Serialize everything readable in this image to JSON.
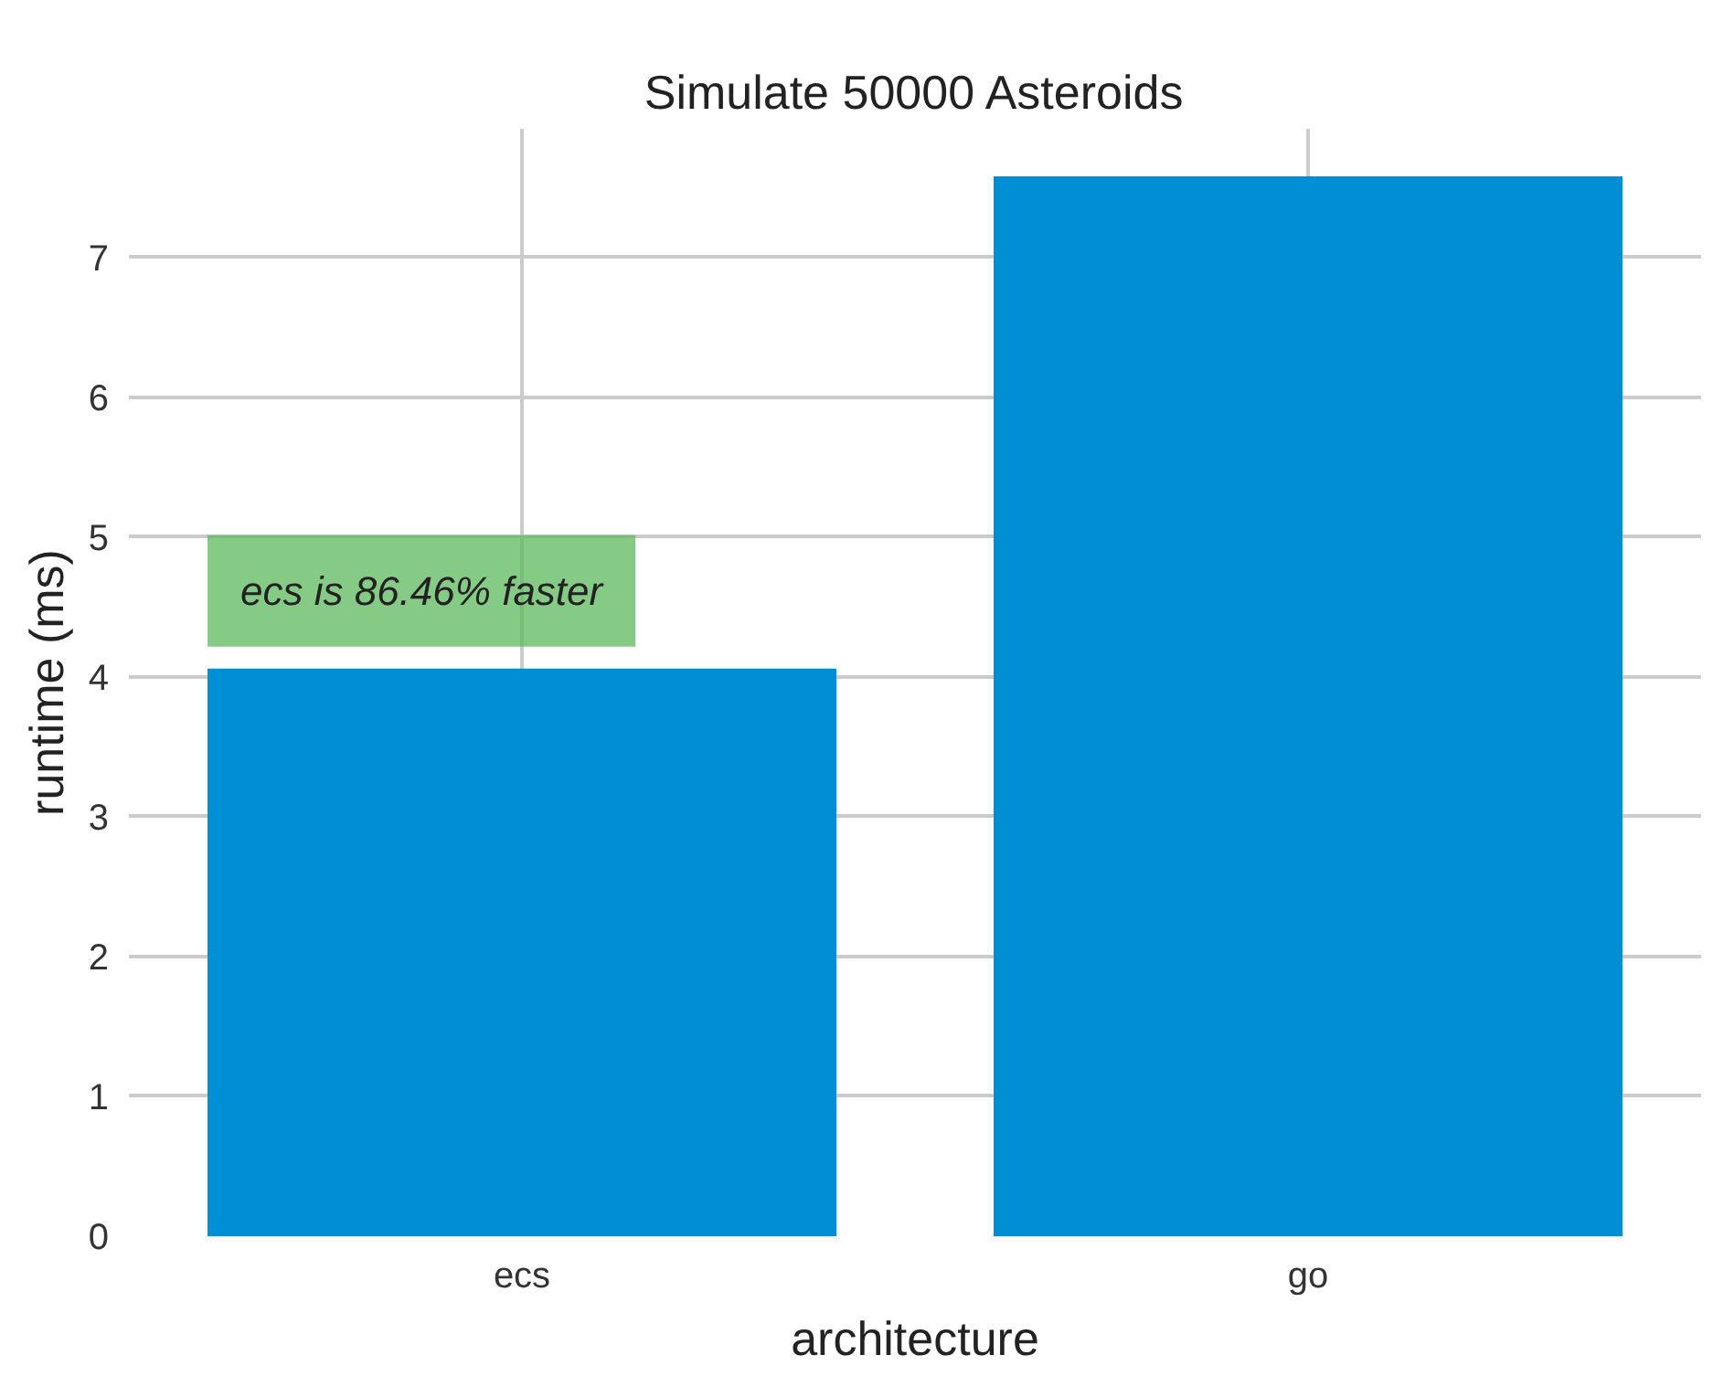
{
  "chart_data": {
    "type": "bar",
    "title": "Simulate 50000 Asteroids",
    "xlabel": "architecture",
    "ylabel": "runtime (ms)",
    "categories": [
      "ecs",
      "go"
    ],
    "values": [
      4.06,
      7.58
    ],
    "color": "#008fd5",
    "ylim": [
      0,
      7.92
    ],
    "yticks": [
      0,
      1,
      2,
      3,
      4,
      5,
      6,
      7
    ],
    "grid": true,
    "annotations": [
      "ecs is 86.46% faster"
    ]
  }
}
